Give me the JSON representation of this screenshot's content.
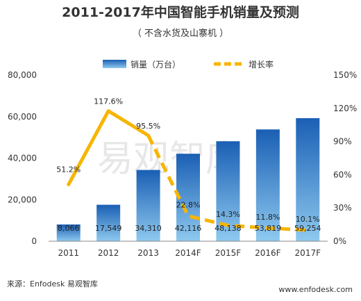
{
  "chart_data": {
    "type": "bar",
    "title": "2011-2017年中国智能手机销量及预测",
    "subtitle": "（ 不含水货及山寨机 ）",
    "categories": [
      "2011",
      "2012",
      "2013",
      "2014F",
      "2015F",
      "2016F",
      "2017F"
    ],
    "series": [
      {
        "name": "销量（万台）",
        "type": "bar",
        "axis": "left",
        "values": [
          8066,
          17549,
          34310,
          42116,
          48138,
          53819,
          59254
        ],
        "labels": [
          "8,066",
          "17,549",
          "34,310",
          "42,116",
          "48,138",
          "53,819",
          "59,254"
        ]
      },
      {
        "name": "增长率",
        "type": "line",
        "axis": "right",
        "values": [
          51.2,
          117.6,
          95.5,
          22.8,
          14.3,
          11.8,
          10.1
        ],
        "labels": [
          "51.2%",
          "117.6%",
          "95.5%",
          "22.8%",
          "14.3%",
          "11.8%",
          "10.1%"
        ],
        "style_note": "solid line through 2013, dashed for forecast years"
      }
    ],
    "y_left": {
      "range": [
        0,
        80000
      ],
      "ticks": [
        "0",
        "20,000",
        "40,000",
        "60,000",
        "80,000"
      ]
    },
    "y_right": {
      "range": [
        0,
        150
      ],
      "ticks": [
        "0%",
        "30%",
        "60%",
        "90%",
        "120%",
        "150%"
      ]
    },
    "legend": {
      "placement": "top"
    },
    "grid": false,
    "colors": {
      "bar_top": "#1a5fb4",
      "bar_bottom": "#8ec9ef",
      "line": "#f7b500"
    }
  },
  "watermark": "易观智库",
  "footer": {
    "source": "来源：Enfodesk 易观智库",
    "site": "www.enfodesk.com"
  }
}
